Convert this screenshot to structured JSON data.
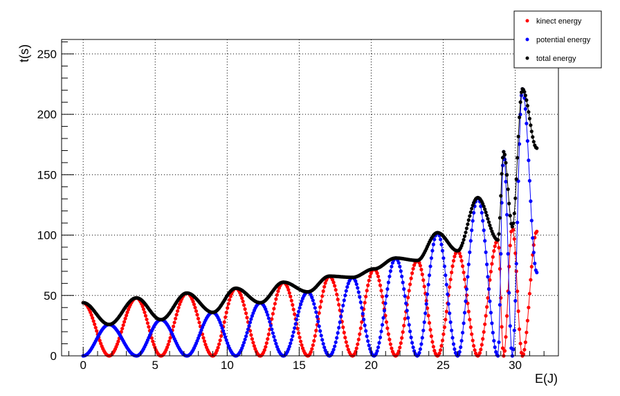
{
  "chart_data": {
    "type": "scatter",
    "xlabel": "E(J)",
    "ylabel": "t(s)",
    "xlim": [
      -1.5,
      33
    ],
    "ylim": [
      0,
      262
    ],
    "x_ticks": [
      0,
      5,
      10,
      15,
      20,
      25,
      30
    ],
    "x_tick_labels": [
      "0",
      "5",
      "10",
      "15",
      "20",
      "25",
      "30"
    ],
    "y_ticks": [
      0,
      50,
      100,
      150,
      200,
      250
    ],
    "y_tick_labels": [
      "0",
      "50",
      "100",
      "150",
      "200",
      "250"
    ],
    "grid": true,
    "legend_position": "top-right",
    "x_range_of_points": [
      0,
      31.5
    ],
    "series": [
      {
        "name": "kinect energy",
        "color": "#ff0000",
        "description_points": [
          [
            0.0,
            44
          ],
          [
            1.8,
            0
          ],
          [
            3.7,
            48
          ],
          [
            5.4,
            0
          ],
          [
            7.2,
            52
          ],
          [
            9.0,
            0
          ],
          [
            10.6,
            56
          ],
          [
            12.3,
            0
          ],
          [
            13.9,
            61
          ],
          [
            15.6,
            0
          ],
          [
            17.1,
            66
          ],
          [
            18.7,
            0
          ],
          [
            20.2,
            72
          ],
          [
            21.7,
            0
          ],
          [
            23.2,
            79
          ],
          [
            24.6,
            0
          ],
          [
            26.0,
            87
          ],
          [
            27.4,
            0
          ],
          [
            28.8,
            96
          ],
          [
            29.2,
            0
          ],
          [
            29.8,
            107
          ],
          [
            30.5,
            0
          ],
          [
            31.5,
            103
          ]
        ]
      },
      {
        "name": "potential energy",
        "color": "#0000ff",
        "description_points": [
          [
            0.0,
            0
          ],
          [
            1.8,
            26
          ],
          [
            3.7,
            0
          ],
          [
            5.4,
            30
          ],
          [
            7.2,
            0
          ],
          [
            9.0,
            36
          ],
          [
            10.6,
            0
          ],
          [
            12.3,
            44
          ],
          [
            13.9,
            0
          ],
          [
            15.6,
            53
          ],
          [
            17.1,
            0
          ],
          [
            18.7,
            65
          ],
          [
            20.2,
            0
          ],
          [
            21.7,
            81
          ],
          [
            23.2,
            0
          ],
          [
            24.6,
            102
          ],
          [
            26.0,
            0
          ],
          [
            27.4,
            131
          ],
          [
            28.8,
            0
          ],
          [
            29.2,
            169
          ],
          [
            29.8,
            0
          ],
          [
            30.5,
            221
          ],
          [
            31.5,
            69
          ]
        ]
      },
      {
        "name": "total energy",
        "color": "#000000",
        "description_points": [
          [
            0.0,
            44
          ],
          [
            1.8,
            26
          ],
          [
            3.7,
            48
          ],
          [
            5.4,
            30
          ],
          [
            7.2,
            52
          ],
          [
            9.0,
            36
          ],
          [
            10.6,
            56
          ],
          [
            12.3,
            44
          ],
          [
            13.9,
            61
          ],
          [
            15.6,
            53
          ],
          [
            17.1,
            66
          ],
          [
            18.7,
            65
          ],
          [
            20.2,
            72
          ],
          [
            21.7,
            81
          ],
          [
            23.2,
            79
          ],
          [
            24.6,
            102
          ],
          [
            26.0,
            87
          ],
          [
            27.4,
            131
          ],
          [
            28.8,
            96
          ],
          [
            29.2,
            169
          ],
          [
            29.8,
            107
          ],
          [
            30.5,
            221
          ],
          [
            31.5,
            172
          ]
        ]
      }
    ]
  }
}
